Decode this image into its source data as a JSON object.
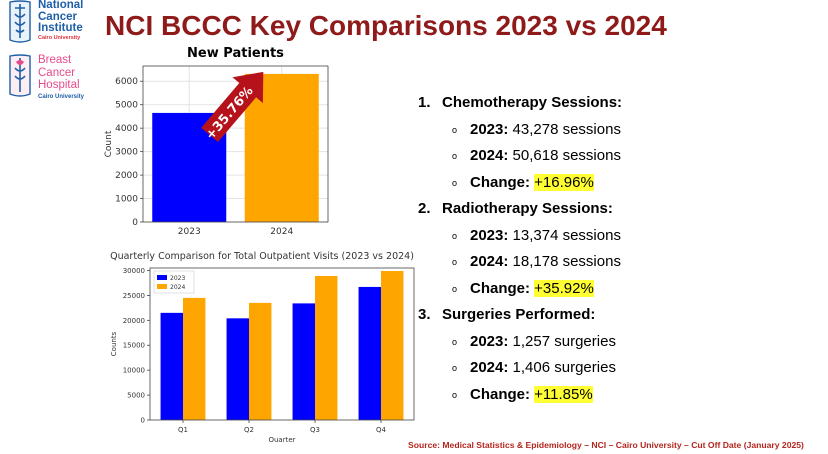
{
  "logos": {
    "nci": {
      "line1": "National",
      "line2": "Cancer",
      "line3": "Institute",
      "sub": "Cairo University"
    },
    "bch": {
      "line1": "Breast",
      "line2": "Cancer",
      "line3": "Hospital",
      "sub": "Cairo University"
    }
  },
  "title": "NCI BCCC Key Comparisons 2023 vs 2024",
  "chart_data": [
    {
      "type": "bar",
      "title": "New Patients",
      "categories": [
        "2023",
        "2024"
      ],
      "values": [
        4650,
        6313
      ],
      "colors": [
        "#0000ff",
        "#ffa500"
      ],
      "ylabel": "Count",
      "ylim": [
        0,
        6650
      ],
      "yticks": [
        0,
        1000,
        2000,
        3000,
        4000,
        5000,
        6000
      ],
      "annotation": "+35.76%",
      "grid": true
    },
    {
      "type": "bar",
      "title": "Quarterly Comparison for Total Outpatient Visits (2023 vs 2024)",
      "categories": [
        "Q1",
        "Q2",
        "Q3",
        "Q4"
      ],
      "series": [
        {
          "name": "2023",
          "values": [
            21500,
            20400,
            23400,
            26700
          ],
          "color": "#0000ff"
        },
        {
          "name": "2024",
          "values": [
            24500,
            23500,
            28900,
            29900
          ],
          "color": "#ffa500"
        }
      ],
      "xlabel": "Quarter",
      "ylabel": "Counts",
      "ylim": [
        0,
        30500
      ],
      "yticks": [
        0,
        5000,
        10000,
        15000,
        20000,
        25000,
        30000
      ],
      "legend": "top-left",
      "grid": false
    }
  ],
  "sections": [
    {
      "num": "1.",
      "title": "Chemotherapy Sessions:",
      "rows": [
        {
          "label": "2023:",
          "value": " 43,278 sessions",
          "highlight": false
        },
        {
          "label": "2024:",
          "value": " 50,618 sessions",
          "highlight": false
        },
        {
          "label": "Change:",
          "value": "+16.96%",
          "highlight": true
        }
      ]
    },
    {
      "num": "2.",
      "title": "Radiotherapy Sessions:",
      "rows": [
        {
          "label": "2023:",
          "value": " 13,374 sessions",
          "highlight": false
        },
        {
          "label": "2024:",
          "value": " 18,178 sessions",
          "highlight": false
        },
        {
          "label": "Change:",
          "value": "+35.92%",
          "highlight": true
        }
      ]
    },
    {
      "num": "3.",
      "title": "Surgeries Performed:",
      "rows": [
        {
          "label": "2023:",
          "value": " 1,257 surgeries",
          "highlight": false
        },
        {
          "label": "2024:",
          "value": " 1,406 surgeries",
          "highlight": false
        },
        {
          "label": "Change:",
          "value": "+11.85%",
          "highlight": true
        }
      ]
    }
  ],
  "bullet": "o",
  "source": "Source: Medical Statistics & Epidemiology – NCI – Cairo University – Cut Off Date (January 2025)"
}
